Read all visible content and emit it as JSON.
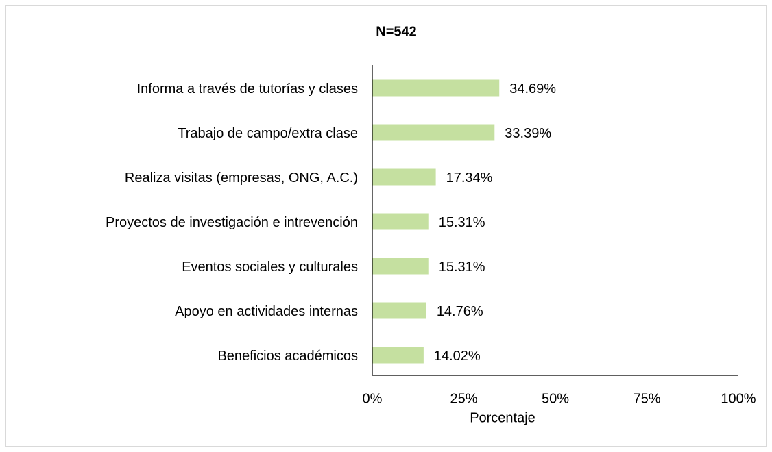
{
  "chart_data": {
    "type": "bar",
    "orientation": "horizontal",
    "title": "N=542",
    "x_label": "Porcentaje",
    "categories": [
      "Informa a través de tutorías y clases",
      "Trabajo de campo/extra clase",
      "Realiza visitas (empresas, ONG, A.C.)",
      "Proyectos de investigación e intrevención",
      "Eventos sociales y culturales",
      "Apoyo en actividades internas",
      "Beneficios académicos"
    ],
    "values": [
      34.69,
      33.39,
      17.34,
      15.31,
      15.31,
      14.76,
      14.02
    ],
    "value_labels": [
      "34.69%",
      "33.39%",
      "17.34%",
      "15.31%",
      "15.31%",
      "14.76%",
      "14.02%"
    ],
    "color": "#c5e0a0",
    "xlim": [
      0,
      100
    ],
    "xticks": [
      {
        "value": 0,
        "label": "0%"
      },
      {
        "value": 25,
        "label": "25%"
      },
      {
        "value": 50,
        "label": "50%"
      },
      {
        "value": 75,
        "label": "75%"
      },
      {
        "value": 100,
        "label": "100%"
      }
    ],
    "grid": false
  }
}
